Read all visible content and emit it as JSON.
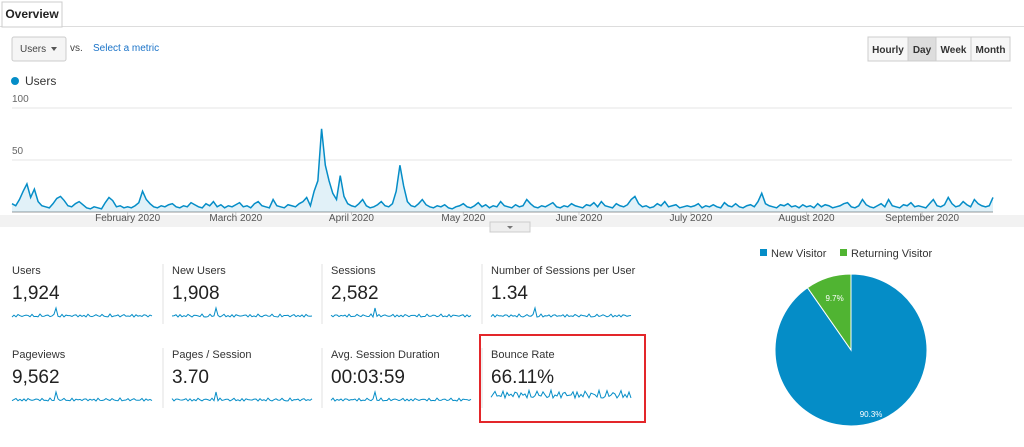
{
  "tab": "Overview",
  "controls": {
    "metric": "Users",
    "vs": "vs.",
    "select_metric": "Select a metric",
    "granularity": [
      "Hourly",
      "Day",
      "Week",
      "Month"
    ]
  },
  "chart_data": [
    {
      "type": "line",
      "series": [
        {
          "name": "Users",
          "color": "#058dc7",
          "values": [
            8,
            6,
            12,
            20,
            27,
            14,
            22,
            10,
            6,
            5,
            4,
            8,
            13,
            15,
            11,
            6,
            5,
            8,
            10,
            7,
            4,
            3,
            5,
            4,
            3,
            9,
            14,
            11,
            5,
            6,
            4,
            5,
            4,
            6,
            9,
            20,
            12,
            8,
            5,
            4,
            6,
            5,
            7,
            8,
            5,
            4,
            6,
            5,
            9,
            7,
            5,
            4,
            8,
            6,
            10,
            5,
            7,
            4,
            6,
            5,
            7,
            9,
            5,
            6,
            4,
            8,
            10,
            6,
            5,
            4,
            12,
            6,
            5,
            4,
            7,
            6,
            5,
            8,
            10,
            14,
            6,
            20,
            30,
            80,
            45,
            30,
            18,
            12,
            35,
            15,
            8,
            6,
            5,
            8,
            12,
            6,
            4,
            5,
            7,
            10,
            6,
            5,
            8,
            20,
            45,
            25,
            10,
            6,
            5,
            8,
            12,
            7,
            5,
            4,
            6,
            5,
            7,
            4,
            3,
            5,
            6,
            8,
            5,
            4,
            6,
            9,
            5,
            7,
            4,
            6,
            5,
            10,
            6,
            5,
            4,
            7,
            5,
            6,
            12,
            8,
            5,
            4,
            6,
            5,
            7,
            9,
            5,
            4,
            6,
            5,
            8,
            6,
            5,
            4,
            7,
            6,
            9,
            5,
            10,
            6,
            5,
            4,
            8,
            6,
            5,
            7,
            12,
            15,
            8,
            5,
            6,
            4,
            5,
            8,
            6,
            10,
            5,
            6,
            7,
            4,
            5,
            6,
            5,
            6,
            8,
            4,
            6,
            5,
            7,
            5,
            4,
            9,
            6,
            5,
            8,
            5,
            4,
            6,
            7,
            5,
            10,
            18,
            8,
            6,
            5,
            4,
            7,
            6,
            8,
            5,
            6,
            4,
            7,
            5,
            6,
            4,
            8,
            5,
            7,
            6,
            4,
            5,
            6,
            8,
            9,
            5,
            4,
            6,
            12,
            7,
            5,
            4,
            6,
            8,
            5,
            12,
            6,
            5,
            4,
            7,
            6,
            9,
            5,
            6,
            5,
            4,
            8,
            12,
            6,
            5,
            7,
            14,
            8,
            5,
            6,
            10,
            7,
            5,
            12,
            8,
            6,
            5,
            6,
            14
          ]
        }
      ],
      "xlim": [
        0,
        263
      ],
      "xticks": [
        {
          "value": 31,
          "label": "February 2020"
        },
        {
          "value": 60,
          "label": "March 2020"
        },
        {
          "value": 91,
          "label": "April 2020"
        },
        {
          "value": 121,
          "label": "May 2020"
        },
        {
          "value": 152,
          "label": "June 2020"
        },
        {
          "value": 182,
          "label": "July 2020"
        },
        {
          "value": 213,
          "label": "August 2020"
        },
        {
          "value": 244,
          "label": "September 2020"
        }
      ],
      "ylim": [
        0,
        100
      ],
      "yticks": [
        50,
        100
      ],
      "grid": true
    },
    {
      "type": "pie",
      "categories": [
        "New Visitor",
        "Returning Visitor"
      ],
      "values": [
        90.3,
        9.7
      ],
      "value_labels": [
        "90.3%",
        "9.7%"
      ],
      "colors": [
        "#058dc7",
        "#50b432"
      ]
    }
  ],
  "scorecards": [
    {
      "label": "Users",
      "value": "1,924"
    },
    {
      "label": "New Users",
      "value": "1,908"
    },
    {
      "label": "Sessions",
      "value": "2,582"
    },
    {
      "label": "Number of Sessions per User",
      "value": "1.34"
    },
    {
      "label": "Pageviews",
      "value": "9,562"
    },
    {
      "label": "Pages / Session",
      "value": "3.70"
    },
    {
      "label": "Avg. Session Duration",
      "value": "00:03:59"
    },
    {
      "label": "Bounce Rate",
      "value": "66.11%"
    }
  ]
}
